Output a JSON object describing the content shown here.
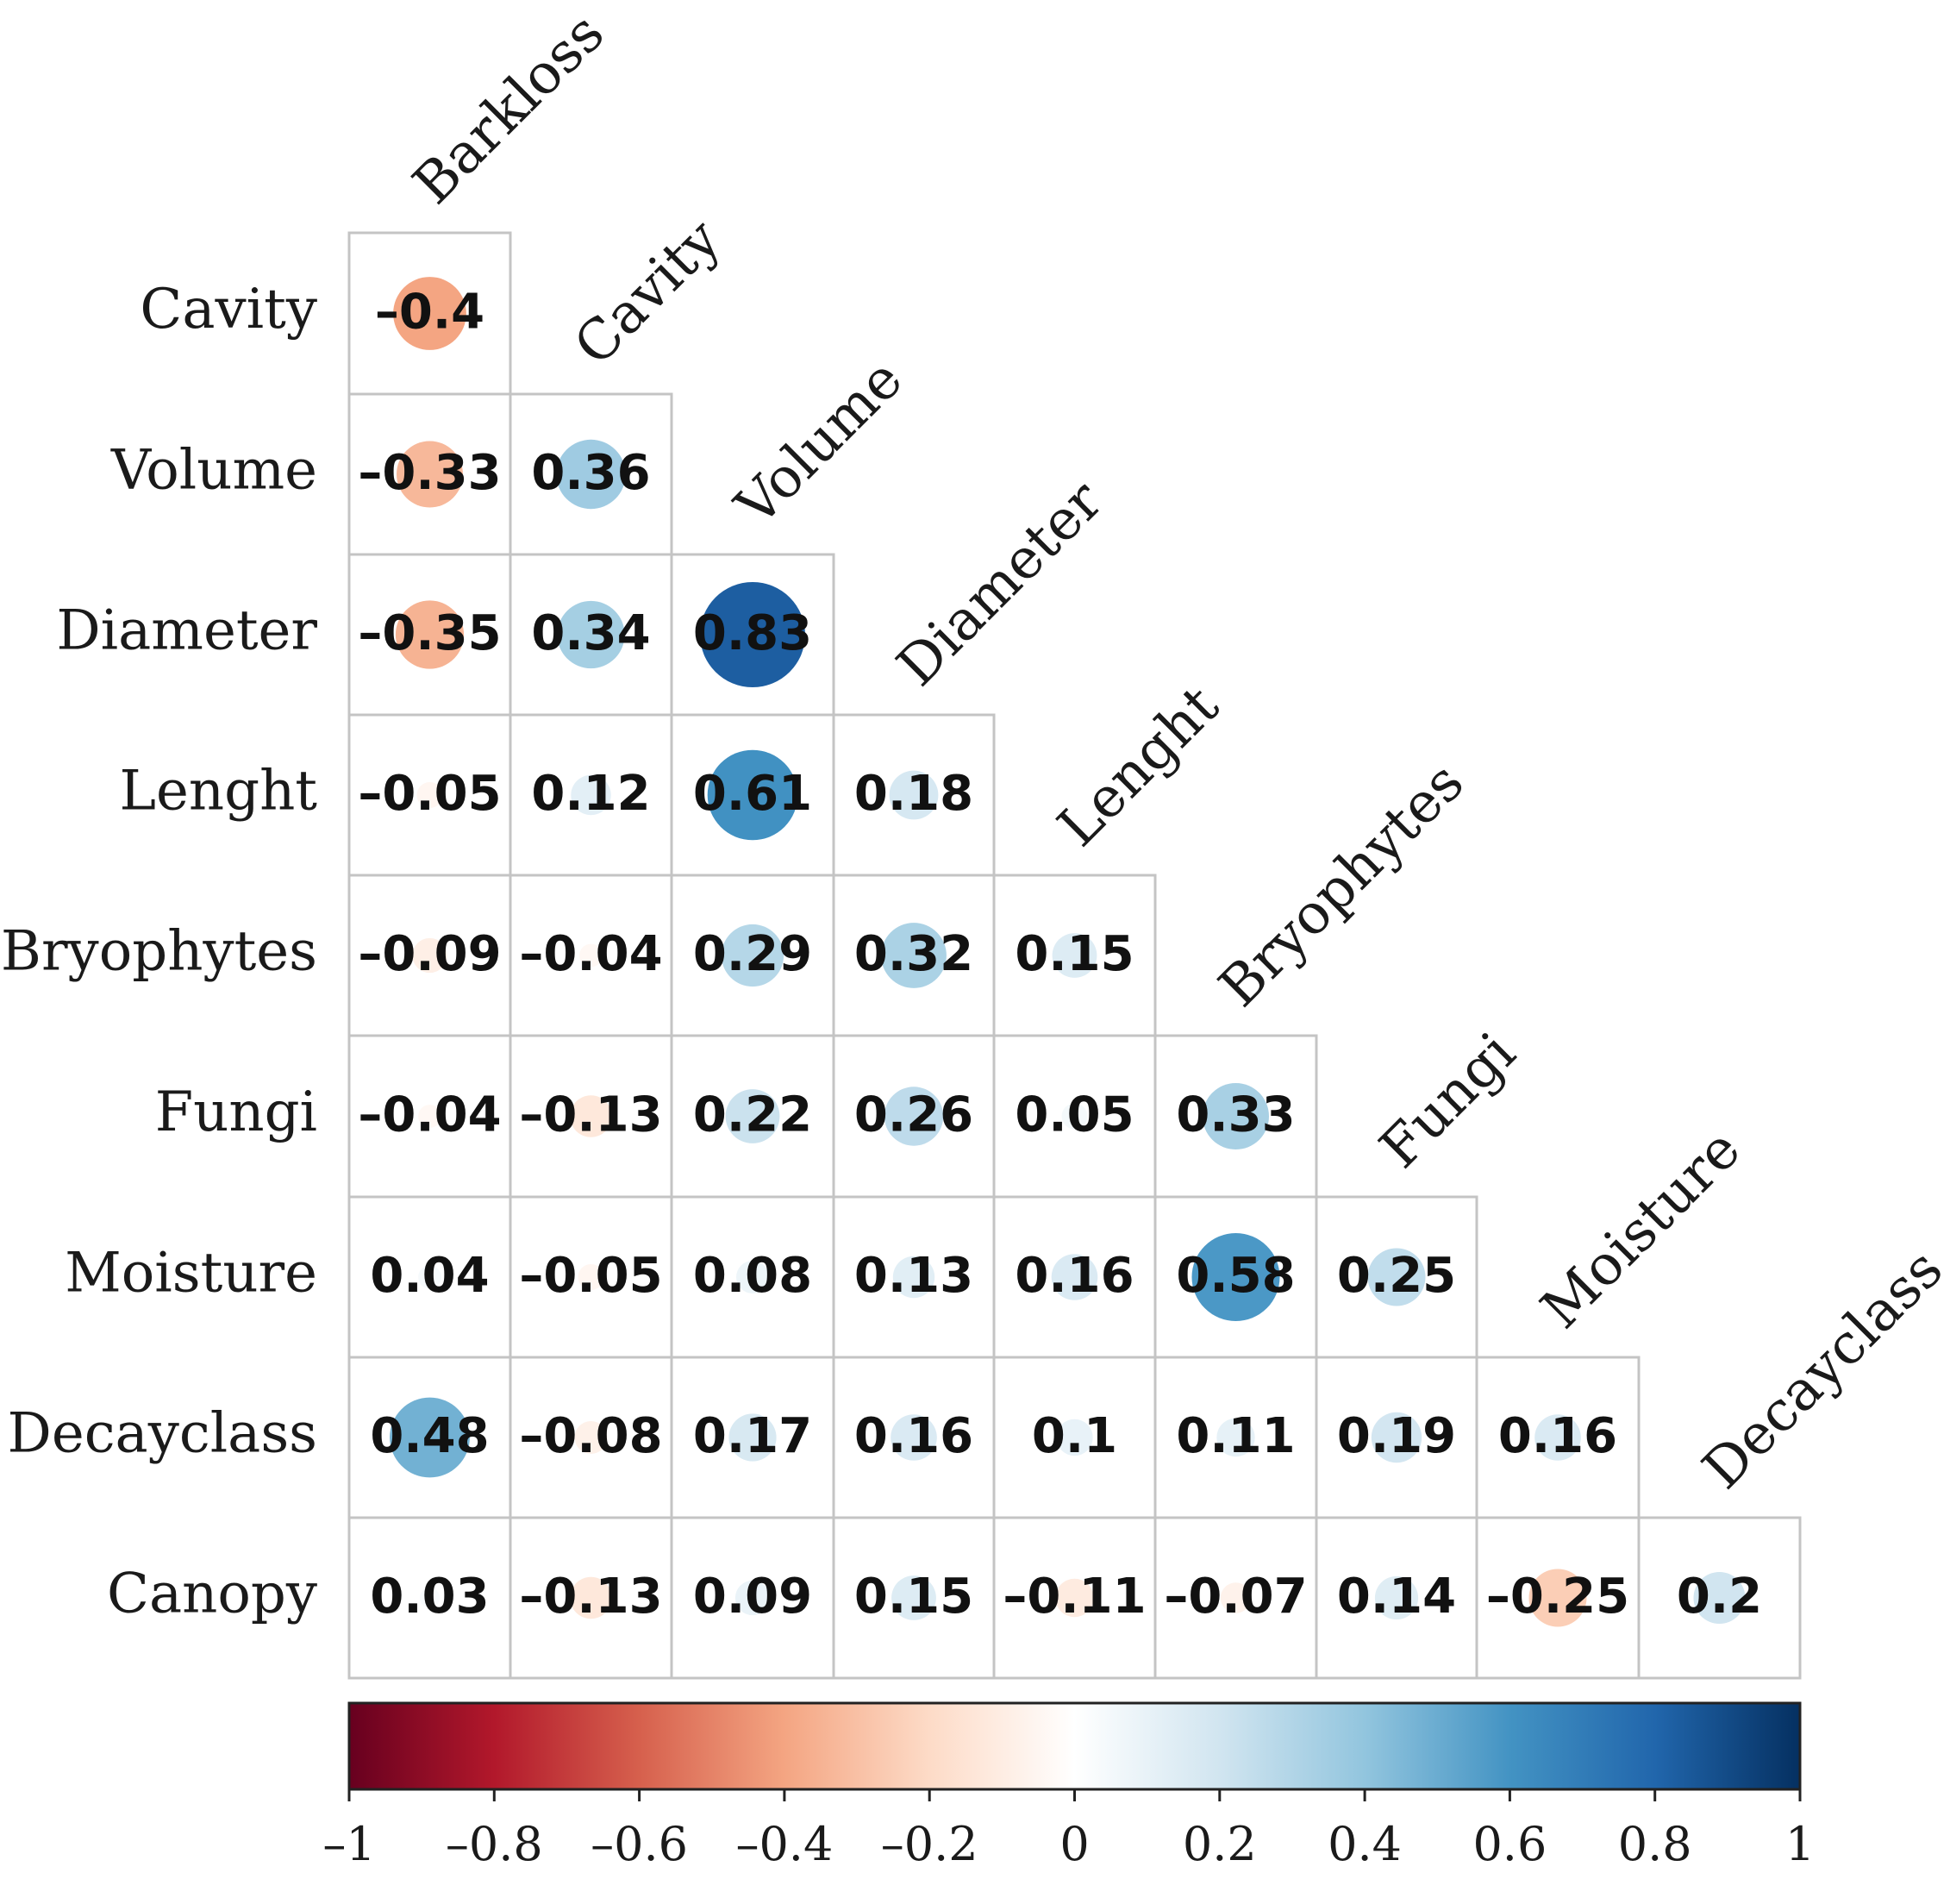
{
  "chart_data": {
    "type": "heatmap",
    "style": "correlation-matrix-lower-triangle-circles",
    "title": "",
    "col_variables": [
      "Barkloss",
      "Cavity",
      "Volume",
      "Diameter",
      "Lenght",
      "Bryophytes",
      "Fungi",
      "Moisture",
      "Decayclass"
    ],
    "row_variables": [
      "Cavity",
      "Volume",
      "Diameter",
      "Lenght",
      "Bryophytes",
      "Fungi",
      "Moisture",
      "Decayclass",
      "Canopy"
    ],
    "values": [
      [
        -0.4
      ],
      [
        -0.33,
        0.36
      ],
      [
        -0.35,
        0.34,
        0.83
      ],
      [
        -0.05,
        0.12,
        0.61,
        0.18
      ],
      [
        -0.09,
        -0.04,
        0.29,
        0.32,
        0.15
      ],
      [
        -0.04,
        -0.13,
        0.22,
        0.26,
        0.05,
        0.33
      ],
      [
        0.04,
        -0.05,
        0.08,
        0.13,
        0.16,
        0.58,
        0.25
      ],
      [
        0.48,
        -0.08,
        0.17,
        0.16,
        0.1,
        0.11,
        0.19,
        0.16
      ],
      [
        0.03,
        -0.13,
        0.09,
        0.15,
        -0.11,
        -0.07,
        0.14,
        -0.25,
        0.2
      ]
    ],
    "value_labels": [
      [
        "–0.4"
      ],
      [
        "–0.33",
        "0.36"
      ],
      [
        "–0.35",
        "0.34",
        "0.83"
      ],
      [
        "–0.05",
        "0.12",
        "0.61",
        "0.18"
      ],
      [
        "–0.09",
        "–0.04",
        "0.29",
        "0.32",
        "0.15"
      ],
      [
        "–0.04",
        "–0.13",
        "0.22",
        "0.26",
        "0.05",
        "0.33"
      ],
      [
        "0.04",
        "–0.05",
        "0.08",
        "0.13",
        "0.16",
        "0.58",
        "0.25"
      ],
      [
        "0.48",
        "–0.08",
        "0.17",
        "0.16",
        "0.1",
        "0.11",
        "0.19",
        "0.16"
      ],
      [
        "0.03",
        "–0.13",
        "0.09",
        "0.15",
        "–0.11",
        "–0.07",
        "0.14",
        "–0.25",
        "0.2"
      ]
    ],
    "colorbar": {
      "range": [
        -1,
        1
      ],
      "ticks": [
        -1,
        -0.8,
        -0.6,
        -0.4,
        -0.2,
        0,
        0.2,
        0.4,
        0.6,
        0.8,
        1
      ],
      "tick_labels": [
        "–1",
        "–0.8",
        "–0.6",
        "–0.4",
        "–0.2",
        "0",
        "0.2",
        "0.4",
        "0.6",
        "0.8",
        "1"
      ],
      "placement": "bottom"
    },
    "colorscale": [
      "#67001F",
      "#B2182B",
      "#D6604D",
      "#F4A582",
      "#FDDBC7",
      "#FFFFFF",
      "#D1E5F0",
      "#92C5DE",
      "#4393C3",
      "#2166AC",
      "#053061"
    ]
  }
}
